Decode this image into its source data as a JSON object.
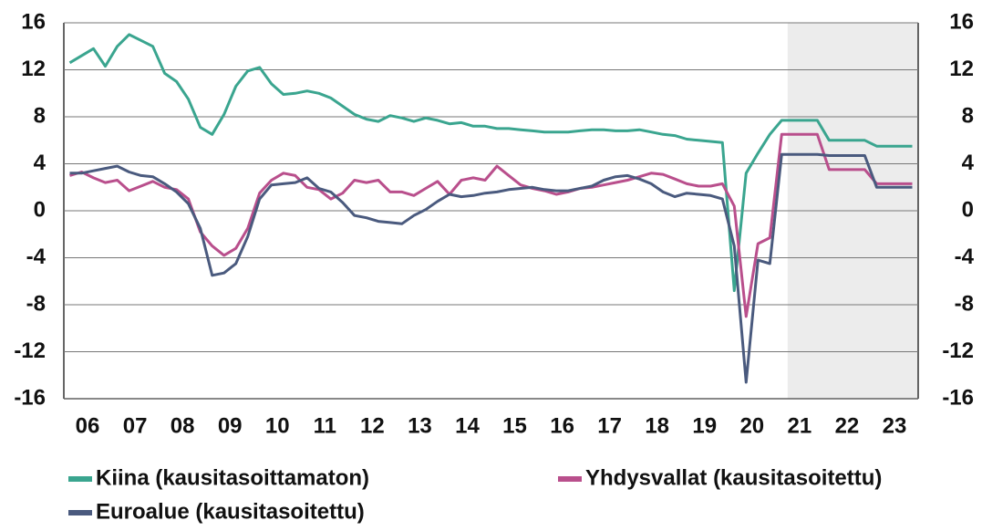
{
  "chart_data": {
    "type": "line",
    "x": [
      2006.125,
      2006.375,
      2006.625,
      2006.875,
      2007.125,
      2007.375,
      2007.625,
      2007.875,
      2008.125,
      2008.375,
      2008.625,
      2008.875,
      2009.125,
      2009.375,
      2009.625,
      2009.875,
      2010.125,
      2010.375,
      2010.625,
      2010.875,
      2011.125,
      2011.375,
      2011.625,
      2011.875,
      2012.125,
      2012.375,
      2012.625,
      2012.875,
      2013.125,
      2013.375,
      2013.625,
      2013.875,
      2014.125,
      2014.375,
      2014.625,
      2014.875,
      2015.125,
      2015.375,
      2015.625,
      2015.875,
      2016.125,
      2016.375,
      2016.625,
      2016.875,
      2017.125,
      2017.375,
      2017.625,
      2017.875,
      2018.125,
      2018.375,
      2018.625,
      2018.875,
      2019.125,
      2019.375,
      2019.625,
      2019.875,
      2020.125,
      2020.375,
      2020.625,
      2020.875,
      2021.125,
      2021.375,
      2021.625,
      2021.875,
      2022.125,
      2022.375,
      2022.625,
      2022.875,
      2023.125,
      2023.375,
      2023.625,
      2023.875
    ],
    "series": [
      {
        "name": "Kiina (kausitasoittamaton)",
        "color": "#3aa58f",
        "values": [
          12.6,
          13.2,
          13.8,
          12.3,
          14.0,
          15.0,
          14.5,
          14.0,
          11.7,
          11.0,
          9.5,
          7.1,
          6.5,
          8.2,
          10.6,
          11.9,
          12.2,
          10.8,
          9.9,
          10.0,
          10.2,
          10.0,
          9.6,
          8.9,
          8.2,
          7.8,
          7.6,
          8.1,
          7.9,
          7.6,
          7.9,
          7.7,
          7.4,
          7.5,
          7.2,
          7.2,
          7.0,
          7.0,
          6.9,
          6.8,
          6.7,
          6.7,
          6.7,
          6.8,
          6.9,
          6.9,
          6.8,
          6.8,
          6.9,
          6.7,
          6.5,
          6.4,
          6.1,
          6.0,
          5.9,
          5.8,
          -6.8,
          3.2,
          4.9,
          6.5,
          7.7,
          7.7,
          7.7,
          7.7,
          6.0,
          6.0,
          6.0,
          6.0,
          5.5,
          5.5,
          5.5,
          5.5
        ]
      },
      {
        "name": "Yhdysvallat (kausitasoitettu)",
        "color": "#b94f8c",
        "values": [
          3.0,
          3.3,
          2.8,
          2.4,
          2.6,
          1.7,
          2.1,
          2.5,
          2.0,
          1.8,
          1.0,
          -1.8,
          -3.0,
          -3.8,
          -3.2,
          -1.5,
          1.5,
          2.6,
          3.2,
          3.0,
          2.0,
          1.8,
          1.0,
          1.5,
          2.6,
          2.4,
          2.6,
          1.6,
          1.6,
          1.3,
          1.9,
          2.5,
          1.4,
          2.6,
          2.8,
          2.6,
          3.8,
          3.0,
          2.2,
          1.9,
          1.7,
          1.4,
          1.6,
          1.9,
          2.0,
          2.2,
          2.4,
          2.6,
          2.9,
          3.2,
          3.1,
          2.7,
          2.3,
          2.1,
          2.1,
          2.3,
          0.4,
          -9.0,
          -2.8,
          -2.3,
          6.5,
          6.5,
          6.5,
          6.5,
          3.5,
          3.5,
          3.5,
          3.5,
          2.3,
          2.3,
          2.3,
          2.3
        ]
      },
      {
        "name": "Euroalue (kausitasoitettu)",
        "color": "#4a5a7e",
        "values": [
          3.2,
          3.2,
          3.4,
          3.6,
          3.8,
          3.3,
          3.0,
          2.9,
          2.3,
          1.6,
          0.6,
          -1.5,
          -5.5,
          -5.3,
          -4.5,
          -2.2,
          1.0,
          2.2,
          2.3,
          2.4,
          2.8,
          1.9,
          1.6,
          0.7,
          -0.4,
          -0.6,
          -0.9,
          -1.0,
          -1.1,
          -0.4,
          0.1,
          0.8,
          1.4,
          1.2,
          1.3,
          1.5,
          1.6,
          1.8,
          1.9,
          2.0,
          1.8,
          1.7,
          1.7,
          1.9,
          2.1,
          2.6,
          2.9,
          3.0,
          2.7,
          2.3,
          1.6,
          1.2,
          1.5,
          1.4,
          1.3,
          1.0,
          -3.0,
          -14.6,
          -4.2,
          -4.5,
          4.8,
          4.8,
          4.8,
          4.8,
          4.7,
          4.7,
          4.7,
          4.7,
          2.0,
          2.0,
          2.0,
          2.0
        ]
      }
    ],
    "xlim": [
      2006,
      2024
    ],
    "xticks": [
      {
        "value": 2006.5,
        "label": "06"
      },
      {
        "value": 2007.5,
        "label": "07"
      },
      {
        "value": 2008.5,
        "label": "08"
      },
      {
        "value": 2009.5,
        "label": "09"
      },
      {
        "value": 2010.5,
        "label": "10"
      },
      {
        "value": 2011.5,
        "label": "11"
      },
      {
        "value": 2012.5,
        "label": "12"
      },
      {
        "value": 2013.5,
        "label": "13"
      },
      {
        "value": 2014.5,
        "label": "14"
      },
      {
        "value": 2015.5,
        "label": "15"
      },
      {
        "value": 2016.5,
        "label": "16"
      },
      {
        "value": 2017.5,
        "label": "17"
      },
      {
        "value": 2018.5,
        "label": "18"
      },
      {
        "value": 2019.5,
        "label": "19"
      },
      {
        "value": 2020.5,
        "label": "20"
      },
      {
        "value": 2021.5,
        "label": "21"
      },
      {
        "value": 2022.5,
        "label": "22"
      },
      {
        "value": 2023.5,
        "label": "23"
      }
    ],
    "ylim": [
      -16,
      16
    ],
    "yticks": [
      -16,
      -12,
      -8,
      -4,
      0,
      4,
      8,
      12,
      16
    ],
    "y2lim": [
      -16,
      16
    ],
    "y2ticks": [
      -16,
      -12,
      -8,
      -4,
      0,
      4,
      8,
      12,
      16
    ],
    "shaded_xrange": [
      2021.25,
      2024
    ],
    "grid": true
  }
}
